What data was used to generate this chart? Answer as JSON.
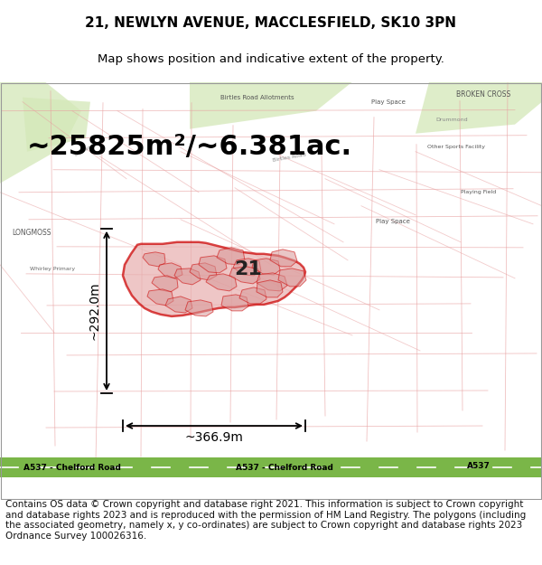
{
  "title_line1": "21, NEWLYN AVENUE, MACCLESFIELD, SK10 3PN",
  "title_line2": "Map shows position and indicative extent of the property.",
  "area_text": "~25825m²/~6.381ac.",
  "dim_width": "~366.9m",
  "dim_height": "~292.0m",
  "label_21": "21",
  "copyright_text": "Contains OS data © Crown copyright and database right 2021. This information is subject to Crown copyright and database rights 2023 and is reproduced with the permission of HM Land Registry. The polygons (including the associated geometry, namely x, y co-ordinates) are subject to Crown copyright and database rights 2023 Ordnance Survey 100026316.",
  "bg_color": "#f2ede8",
  "title_fontsize": 11,
  "subtitle_fontsize": 9.5,
  "area_fontsize": 22,
  "dim_fontsize": 10,
  "label_fontsize": 16,
  "copyright_fontsize": 7.5,
  "road_color": "#7ab648",
  "property_fill": "#e8b0b0",
  "property_edge": "#cc0000",
  "street_color": "#e8a0a0",
  "green_area_color": "#d4e8b8"
}
